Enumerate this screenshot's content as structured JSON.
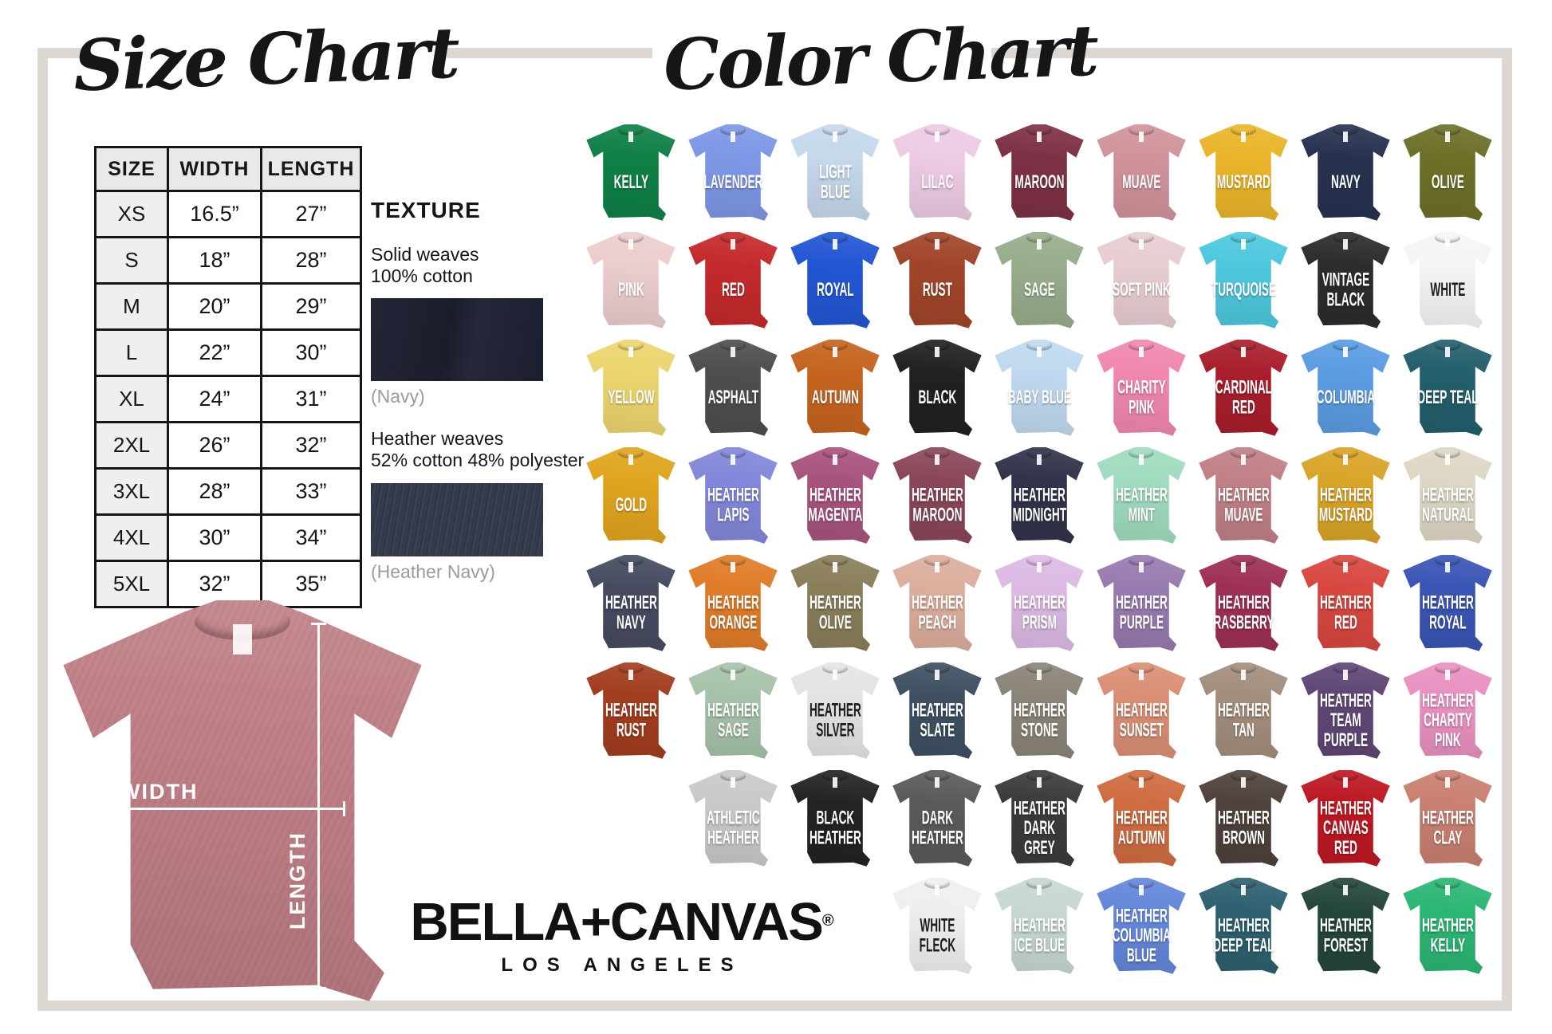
{
  "page": {
    "frame_color": "#ded6d1",
    "background": "#ffffff"
  },
  "size_chart": {
    "title": "Size Chart",
    "table": {
      "headers": [
        "SIZE",
        "WIDTH",
        "LENGTH"
      ],
      "rows": [
        [
          "XS",
          "16.5”",
          "27”"
        ],
        [
          "S",
          "18”",
          "28”"
        ],
        [
          "M",
          "20”",
          "29”"
        ],
        [
          "L",
          "22”",
          "30”"
        ],
        [
          "XL",
          "24”",
          "31”"
        ],
        [
          "2XL",
          "26”",
          "32”"
        ],
        [
          "3XL",
          "28”",
          "33”"
        ],
        [
          "4XL",
          "30”",
          "34”"
        ],
        [
          "5XL",
          "32”",
          "35”"
        ]
      ]
    }
  },
  "texture": {
    "heading": "TEXTURE",
    "solid": {
      "line1": "Solid weaves",
      "line2": "100% cotton",
      "swatch_color": "#1c1f2e",
      "caption": "(Navy)"
    },
    "heather": {
      "line1": "Heather weaves",
      "line2": "52% cotton 48% polyester",
      "swatch_color": "#363d4d",
      "caption": "(Heather Navy)"
    }
  },
  "measurement_diagram": {
    "shirt_color": "#c08086",
    "width_label": "WIDTH",
    "length_label": "LENGTH"
  },
  "brand": {
    "name": "BELLA+CANVAS",
    "registered_mark": "®",
    "city": "LOS ANGELES"
  },
  "color_chart": {
    "title": "Color Chart",
    "rows": [
      {
        "offset": 0,
        "shirts": [
          {
            "name": "KELLY",
            "color": "#0f8046"
          },
          {
            "name": "LAVENDER",
            "color": "#7e97e6"
          },
          {
            "name": "LIGHT BLUE",
            "color": "#c5d8ec"
          },
          {
            "name": "LILAC",
            "color": "#edcbe4"
          },
          {
            "name": "MAROON",
            "color": "#7d3144"
          },
          {
            "name": "MUAVE",
            "color": "#d1939b"
          },
          {
            "name": "MUSTARD",
            "color": "#eab52a"
          },
          {
            "name": "NAVY",
            "color": "#273250"
          },
          {
            "name": "OLIVE",
            "color": "#6d7028"
          }
        ]
      },
      {
        "offset": 0,
        "shirts": [
          {
            "name": "PINK",
            "color": "#eccdcd"
          },
          {
            "name": "RED",
            "color": "#c42a2c"
          },
          {
            "name": "ROYAL",
            "color": "#2356d4"
          },
          {
            "name": "RUST",
            "color": "#a1452a"
          },
          {
            "name": "SAGE",
            "color": "#97ad8c"
          },
          {
            "name": "SOFT PINK",
            "color": "#e8cdd0"
          },
          {
            "name": "TURQUOISE",
            "color": "#4ec8de"
          },
          {
            "name": "VINTAGE BLACK",
            "color": "#2e2b2c"
          },
          {
            "name": "WHITE",
            "color": "#f5f5f5",
            "text": "dark"
          }
        ]
      },
      {
        "offset": 0,
        "shirts": [
          {
            "name": "YELLOW",
            "color": "#ecd56f"
          },
          {
            "name": "ASPHALT",
            "color": "#4f4d4f"
          },
          {
            "name": "AUTUMN",
            "color": "#c5641f"
          },
          {
            "name": "BLACK",
            "color": "#222021"
          },
          {
            "name": "BABY BLUE",
            "color": "#c0d9f0"
          },
          {
            "name": "CHARITY PINK",
            "color": "#f187b0"
          },
          {
            "name": "CARDINAL RED",
            "color": "#a91e2c"
          },
          {
            "name": "COLUMBIA",
            "color": "#5b9ce2"
          },
          {
            "name": "DEEP TEAL",
            "color": "#235f6c"
          }
        ]
      },
      {
        "offset": 0,
        "shirts": [
          {
            "name": "GOLD",
            "color": "#e0a51f"
          },
          {
            "name": "HEATHER LAPIS",
            "color": "#8287da"
          },
          {
            "name": "HEATHER MAGENTA",
            "color": "#a8537e"
          },
          {
            "name": "HEATHER MAROON",
            "color": "#8a4759"
          },
          {
            "name": "HEATHER MIDNIGHT",
            "color": "#31334a"
          },
          {
            "name": "HEATHER MINT",
            "color": "#a0dcbf"
          },
          {
            "name": "HEATHER MUAVE",
            "color": "#c08086"
          },
          {
            "name": "HEATHER MUSTARD",
            "color": "#d9a428"
          },
          {
            "name": "HEATHER NATURAL",
            "color": "#ded7c5"
          }
        ]
      },
      {
        "offset": 0,
        "shirts": [
          {
            "name": "HEATHER NAVY",
            "color": "#464b60"
          },
          {
            "name": "HEATHER ORANGE",
            "color": "#e07c29"
          },
          {
            "name": "HEATHER OLIVE",
            "color": "#8a7e5a"
          },
          {
            "name": "HEATHER PEACH",
            "color": "#dcae9d"
          },
          {
            "name": "HEATHER PRISM",
            "color": "#dcbae4"
          },
          {
            "name": "HEATHER PURPLE",
            "color": "#987bb0"
          },
          {
            "name": "HEATHER RASBERRY",
            "color": "#9e3054"
          },
          {
            "name": "HEATHER RED",
            "color": "#d84740"
          },
          {
            "name": "HEATHER ROYAL",
            "color": "#3a55b5"
          }
        ]
      },
      {
        "offset": 0,
        "shirts": [
          {
            "name": "HEATHER RUST",
            "color": "#a23d1f"
          },
          {
            "name": "HEATHER SAGE",
            "color": "#a7c2aa"
          },
          {
            "name": "HEATHER SILVER",
            "color": "#e4e4e2",
            "text": "dark"
          },
          {
            "name": "HEATHER SLATE",
            "color": "#3e5062"
          },
          {
            "name": "HEATHER STONE",
            "color": "#8b8479"
          },
          {
            "name": "HEATHER SUNSET",
            "color": "#da8f75"
          },
          {
            "name": "HEATHER TAN",
            "color": "#a28e7d"
          },
          {
            "name": "HEATHER TEAM PURPLE",
            "color": "#5f4775"
          },
          {
            "name": "HEATHER CHARITY PINK",
            "color": "#e991c1"
          }
        ]
      },
      {
        "offset": 1,
        "shirts": [
          {
            "name": "ATHLETIC HEATHER",
            "color": "#c9c9c9"
          },
          {
            "name": "BLACK HEATHER",
            "color": "#242224"
          },
          {
            "name": "DARK HEATHER",
            "color": "#5a5a5a"
          },
          {
            "name": "HEATHER DARK GREY",
            "color": "#3b3b3b"
          },
          {
            "name": "HEATHER AUTUMN",
            "color": "#cf6c41"
          },
          {
            "name": "HEATHER BROWN",
            "color": "#4f423c"
          },
          {
            "name": "HEATHER CANVAS RED",
            "color": "#bd1823"
          },
          {
            "name": "HEATHER CLAY",
            "color": "#c98071"
          }
        ]
      },
      {
        "offset": 3,
        "shirts": [
          {
            "name": "WHITE FLECK",
            "color": "#efefed",
            "text": "dark"
          },
          {
            "name": "HEATHER ICE BLUE",
            "color": "#c6d7d4"
          },
          {
            "name": "HEATHER COLUMBIA BLUE",
            "color": "#6487da"
          },
          {
            "name": "HEATHER DEEP TEAL",
            "color": "#2e606f"
          },
          {
            "name": "HEATHER FOREST",
            "color": "#25463b"
          },
          {
            "name": "HEATHER KELLY",
            "color": "#2cb674"
          }
        ]
      }
    ]
  }
}
